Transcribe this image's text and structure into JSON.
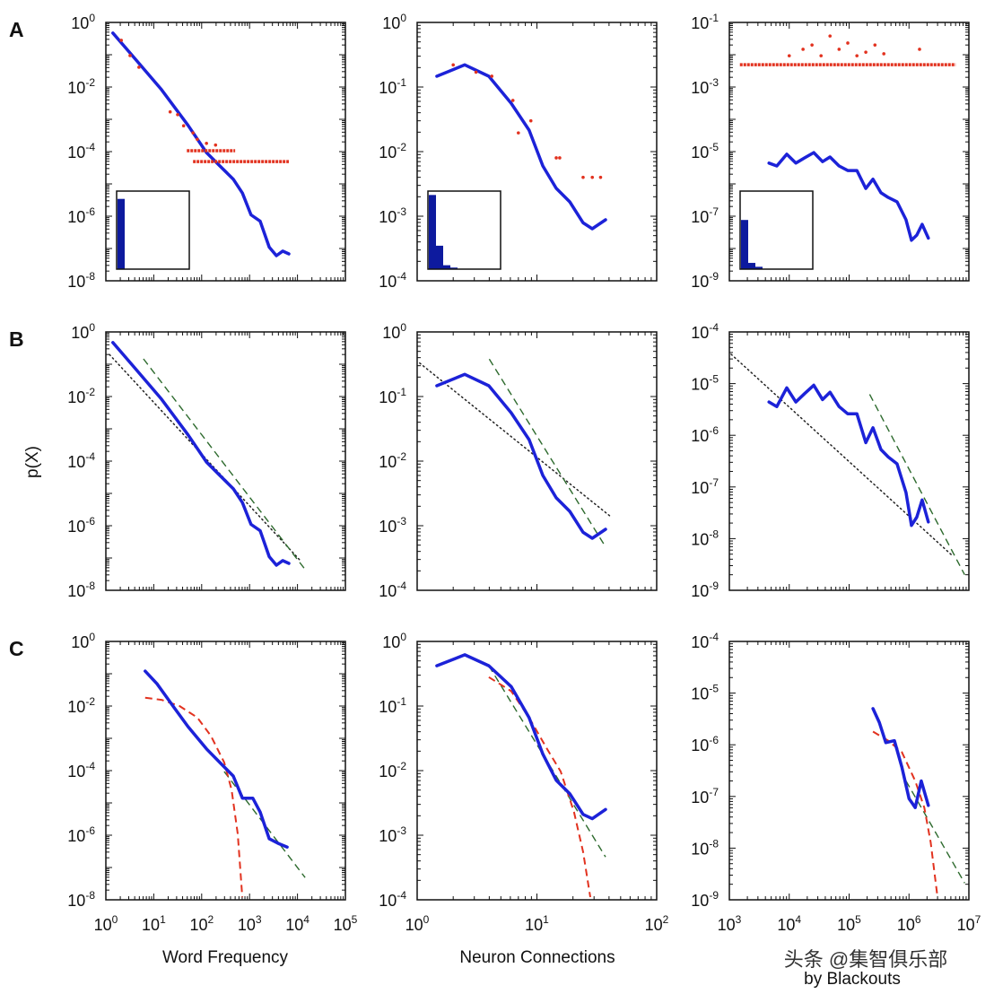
{
  "figure": {
    "row_letters": [
      "A",
      "B",
      "C"
    ],
    "ylabel": "p(X)",
    "xlabels": [
      "Word Frequency",
      "Neuron Connections",
      "by Blackouts"
    ],
    "watermark": "头条 @集智俱乐部"
  },
  "colors": {
    "blue": "#1c22d8",
    "red": "#e2321f",
    "green": "#2d6a2d",
    "black": "#222222",
    "inset_bar": "#0d1a9e"
  },
  "chart_data": [
    {
      "panel": "A-word",
      "type": "line",
      "scale": "log-log",
      "xlim": [
        1,
        100000
      ],
      "ylim": [
        1e-08,
        1
      ],
      "yticks": [
        1,
        0.01,
        0.0001,
        1e-06,
        1e-08
      ],
      "ytick_labels": [
        "10^0",
        "10^-2",
        "10^-4",
        "10^-6",
        "10^-8"
      ],
      "xticks": [],
      "xtick_labels": [],
      "series": [
        {
          "type": "line",
          "style": "solid",
          "color": "blue",
          "x": [
            1.4,
            3.98,
            14.5,
            52,
            126,
            240,
            457,
            708,
            1070,
            1660,
            2570,
            3630,
            4900,
            6600
          ],
          "y": [
            0.47,
            0.078,
            0.0083,
            0.00065,
            9.3e-05,
            3.6e-05,
            1.4e-05,
            5.2e-06,
            1.1e-06,
            7e-07,
            1.1e-07,
            6e-08,
            8.3e-08,
            6.8e-08
          ]
        },
        {
          "type": "scatter",
          "color": "red",
          "x": [
            2.1,
            3.2,
            4.9,
            22,
            31.5,
            42,
            66,
            81,
            126,
            195
          ],
          "y": [
            0.28,
            0.094,
            0.041,
            0.0017,
            0.0014,
            0.00063,
            0.00038,
            0.00024,
            0.00018,
            0.00016
          ]
        },
        {
          "type": "band",
          "color": "red",
          "y": 0.000107,
          "x": [
            49,
            500
          ]
        },
        {
          "type": "band",
          "color": "red",
          "y": 4.9e-05,
          "x": [
            66,
            6600
          ]
        }
      ],
      "inset_bars": [
        0.9
      ]
    },
    {
      "panel": "A-neuron",
      "type": "line",
      "scale": "log-log",
      "xlim": [
        1,
        100
      ],
      "ylim": [
        0.0001,
        1
      ],
      "yticks": [
        1,
        0.1,
        0.01,
        0.001,
        0.0001
      ],
      "ytick_labels": [
        "10^0",
        "10^-1",
        "10^-2",
        "10^-3",
        "10^-4"
      ],
      "xticks": [],
      "xtick_labels": [],
      "series": [
        {
          "type": "line",
          "style": "solid",
          "color": "blue",
          "x": [
            1.46,
            2.5,
            3.97,
            6.1,
            8.6,
            11.2,
            14.5,
            18.8,
            24.3,
            29,
            37.4
          ],
          "y": [
            0.147,
            0.22,
            0.147,
            0.056,
            0.0215,
            0.006,
            0.0027,
            0.00167,
            0.00079,
            0.00064,
            0.00088
          ]
        },
        {
          "type": "scatter",
          "color": "red",
          "x": [
            2.0,
            3.1,
            4.2,
            6.3,
            7.0,
            8.9,
            14.5,
            15.5,
            24.3,
            29,
            34
          ],
          "y": [
            0.22,
            0.17,
            0.147,
            0.062,
            0.0195,
            0.03,
            0.008,
            0.008,
            0.004,
            0.004,
            0.004
          ]
        }
      ],
      "inset_bars": [
        0.95,
        0.3,
        0.05,
        0.02
      ]
    },
    {
      "panel": "A-blackout",
      "type": "line",
      "scale": "log-log",
      "xlim": [
        1000,
        10000000
      ],
      "ylim": [
        1e-09,
        0.1
      ],
      "yticks": [
        0.1,
        0.001,
        1e-05,
        1e-07,
        1e-09
      ],
      "ytick_labels": [
        "10^-1",
        "10^-3",
        "10^-5",
        "10^-7",
        "10^-9"
      ],
      "xticks": [],
      "xtick_labels": [],
      "series": [
        {
          "type": "line",
          "style": "solid",
          "color": "blue",
          "x": [
            4600,
            6200,
            9100,
            12900,
            18000,
            25700,
            36000,
            48000,
            68000,
            95000,
            135000,
            190000,
            250000,
            340000,
            450000,
            630000,
            890000,
            1100000,
            1350000,
            1660000,
            2100000
          ],
          "y": [
            4.4e-06,
            3.6e-06,
            8.3e-06,
            4.4e-06,
            6.4e-06,
            9.3e-06,
            4.9e-06,
            6.8e-06,
            3.6e-06,
            2.6e-06,
            2.6e-06,
            7.2e-07,
            1.4e-06,
            5.3e-07,
            3.8e-07,
            2.8e-07,
            7.8e-08,
            1.8e-08,
            2.6e-08,
            5.6e-08,
            2.1e-08
          ]
        },
        {
          "type": "band",
          "color": "red",
          "y": 0.0049,
          "x": [
            1500,
            6000000
          ]
        },
        {
          "type": "scatter",
          "color": "red",
          "x": [
            10000,
            17000,
            24000,
            34000,
            48000,
            68000,
            95000,
            135000,
            190000,
            270000,
            380000,
            1500000
          ],
          "y": [
            0.0093,
            0.0147,
            0.02,
            0.0093,
            0.038,
            0.0147,
            0.023,
            0.0093,
            0.012,
            0.02,
            0.0107,
            0.0147
          ]
        }
      ],
      "inset_bars": [
        0.63,
        0.08,
        0.03
      ]
    },
    {
      "panel": "B-word",
      "type": "line",
      "scale": "log-log",
      "xlim": [
        1,
        100000
      ],
      "ylim": [
        1e-08,
        1
      ],
      "yticks": [
        1,
        0.01,
        0.0001,
        1e-06,
        1e-08
      ],
      "ytick_labels": [
        "10^0",
        "10^-2",
        "10^-4",
        "10^-6",
        "10^-8"
      ],
      "xticks": [],
      "xtick_labels": [],
      "series": [
        {
          "type": "line",
          "style": "dotted",
          "color": "black",
          "x": [
            1.19,
            11500
          ],
          "y": [
            0.2,
            8.3e-08
          ]
        },
        {
          "type": "line",
          "style": "dashed",
          "color": "green",
          "x": [
            6.1,
            14400
          ],
          "y": [
            0.147,
            4.4e-08
          ]
        },
        {
          "type": "line",
          "style": "solid",
          "color": "blue",
          "x": [
            1.4,
            3.98,
            14.5,
            52,
            126,
            240,
            457,
            708,
            1070,
            1660,
            2570,
            3630,
            4900,
            6600
          ],
          "y": [
            0.47,
            0.078,
            0.0083,
            0.00065,
            9.3e-05,
            3.6e-05,
            1.4e-05,
            5.2e-06,
            1.1e-06,
            7e-07,
            1.1e-07,
            6e-08,
            8.3e-08,
            6.8e-08
          ]
        }
      ]
    },
    {
      "panel": "B-neuron",
      "type": "line",
      "scale": "log-log",
      "xlim": [
        1,
        100
      ],
      "ylim": [
        0.0001,
        1
      ],
      "yticks": [
        1,
        0.1,
        0.01,
        0.001,
        0.0001
      ],
      "ytick_labels": [
        "10^0",
        "10^-1",
        "10^-2",
        "10^-3",
        "10^-4"
      ],
      "xticks": [],
      "xtick_labels": [],
      "series": [
        {
          "type": "line",
          "style": "dotted",
          "color": "black",
          "x": [
            1.05,
            41
          ],
          "y": [
            0.33,
            0.0014
          ]
        },
        {
          "type": "line",
          "style": "dashed",
          "color": "green",
          "x": [
            4.0,
            37.4
          ],
          "y": [
            0.38,
            0.00047
          ]
        },
        {
          "type": "line",
          "style": "solid",
          "color": "blue",
          "x": [
            1.46,
            2.5,
            3.97,
            6.1,
            8.6,
            11.2,
            14.5,
            18.8,
            24.3,
            29,
            37.4
          ],
          "y": [
            0.147,
            0.22,
            0.147,
            0.056,
            0.0215,
            0.006,
            0.0027,
            0.00167,
            0.00079,
            0.00064,
            0.00088
          ]
        }
      ]
    },
    {
      "panel": "B-blackout",
      "type": "line",
      "scale": "log-log",
      "xlim": [
        1000,
        10000000
      ],
      "ylim": [
        1e-09,
        0.0001
      ],
      "yticks": [
        0.0001,
        1e-05,
        1e-06,
        1e-07,
        1e-08,
        1e-09
      ],
      "ytick_labels": [
        "10^-4",
        "10^-5",
        "10^-6",
        "10^-7",
        "10^-8",
        "10^-9"
      ],
      "xticks": [],
      "xtick_labels": [],
      "series": [
        {
          "type": "line",
          "style": "dotted",
          "color": "black",
          "x": [
            1070,
            5400000
          ],
          "y": [
            3.7e-05,
            4.6e-09
          ]
        },
        {
          "type": "line",
          "style": "dashed",
          "color": "green",
          "x": [
            220000,
            8500000
          ],
          "y": [
            6.2e-06,
            2e-09
          ]
        },
        {
          "type": "line",
          "style": "solid",
          "color": "blue",
          "x": [
            4600,
            6200,
            9100,
            12900,
            18000,
            25700,
            36000,
            48000,
            68000,
            95000,
            135000,
            190000,
            250000,
            340000,
            450000,
            630000,
            890000,
            1100000,
            1350000,
            1660000,
            2100000
          ],
          "y": [
            4.4e-06,
            3.6e-06,
            8.3e-06,
            4.4e-06,
            6.4e-06,
            9.3e-06,
            4.9e-06,
            6.8e-06,
            3.6e-06,
            2.6e-06,
            2.6e-06,
            7.2e-07,
            1.4e-06,
            5.3e-07,
            3.8e-07,
            2.8e-07,
            7.8e-08,
            1.8e-08,
            2.6e-08,
            5.6e-08,
            2.1e-08
          ]
        }
      ]
    },
    {
      "panel": "C-word",
      "type": "line",
      "scale": "log-log",
      "xlim": [
        1,
        100000
      ],
      "ylim": [
        1e-08,
        1
      ],
      "yticks": [
        1,
        0.01,
        0.0001,
        1e-06,
        1e-08
      ],
      "ytick_labels": [
        "10^0",
        "10^-2",
        "10^-4",
        "10^-6",
        "10^-8"
      ],
      "xticks": [
        1,
        10,
        100,
        1000,
        10000,
        100000
      ],
      "xtick_labels": [
        "10^0",
        "10^1",
        "10^2",
        "10^3",
        "10^4",
        "10^5"
      ],
      "series": [
        {
          "type": "line",
          "style": "dashed",
          "color": "green",
          "x": [
            295,
            14400
          ],
          "y": [
            9.3e-05,
            4.9e-08
          ]
        },
        {
          "type": "line",
          "style": "dashed",
          "color": "red",
          "x": [
            6.6,
            14.5,
            34.5,
            81,
            155,
            295,
            420,
            565,
            705
          ],
          "y": [
            0.018,
            0.0155,
            0.01,
            0.0044,
            0.0012,
            0.00018,
            2.6e-05,
            1.1e-06,
            1.2e-08
          ]
        },
        {
          "type": "line",
          "style": "solid",
          "color": "blue",
          "x": [
            6.6,
            11.7,
            27.6,
            52,
            126,
            295,
            457,
            708,
            1170,
            1660,
            2570,
            3960,
            6100
          ],
          "y": [
            0.12,
            0.049,
            0.0083,
            0.0023,
            0.00047,
            0.00013,
            6.8e-05,
            1.4e-05,
            1.4e-05,
            5.2e-06,
            7.8e-07,
            5.6e-07,
            4.3e-07
          ]
        }
      ]
    },
    {
      "panel": "C-neuron",
      "type": "line",
      "scale": "log-log",
      "xlim": [
        1,
        100
      ],
      "ylim": [
        0.0001,
        1
      ],
      "yticks": [
        1,
        0.1,
        0.01,
        0.001,
        0.0001
      ],
      "ytick_labels": [
        "10^0",
        "10^-1",
        "10^-2",
        "10^-3",
        "10^-4"
      ],
      "xticks": [
        1,
        10,
        100
      ],
      "xtick_labels": [
        "10^0",
        "10^1",
        "10^2"
      ],
      "series": [
        {
          "type": "line",
          "style": "dashed",
          "color": "green",
          "x": [
            3.97,
            37.4
          ],
          "y": [
            0.42,
            0.00046
          ]
        },
        {
          "type": "line",
          "style": "dashed",
          "color": "red",
          "x": [
            3.97,
            6.1,
            8.6,
            12.2,
            15.8,
            20.4,
            24.3,
            27.9
          ],
          "y": [
            0.28,
            0.17,
            0.066,
            0.0215,
            0.0097,
            0.0023,
            0.00055,
            0.00011
          ]
        },
        {
          "type": "line",
          "style": "solid",
          "color": "blue",
          "x": [
            1.46,
            2.5,
            3.97,
            6.1,
            8.6,
            11.2,
            14.5,
            18.8,
            24.3,
            29,
            37.4
          ],
          "y": [
            0.42,
            0.62,
            0.42,
            0.2,
            0.066,
            0.018,
            0.0071,
            0.0044,
            0.0021,
            0.0018,
            0.0025
          ]
        }
      ]
    },
    {
      "panel": "C-blackout",
      "type": "line",
      "scale": "log-log",
      "xlim": [
        1000,
        10000000
      ],
      "ylim": [
        1e-09,
        0.0001
      ],
      "yticks": [
        0.0001,
        1e-05,
        1e-06,
        1e-07,
        1e-08,
        1e-09
      ],
      "ytick_labels": [
        "10^-4",
        "10^-5",
        "10^-6",
        "10^-7",
        "10^-8",
        "10^-9"
      ],
      "xticks": [
        1000,
        10000,
        100000,
        1000000,
        10000000
      ],
      "xtick_labels": [
        "10^3",
        "10^4",
        "10^5",
        "10^6",
        "10^7"
      ],
      "series": [
        {
          "type": "line",
          "style": "dashed",
          "color": "green",
          "x": [
            890000,
            8500000
          ],
          "y": [
            2e-07,
            2.1e-09
          ]
        },
        {
          "type": "line",
          "style": "dashed",
          "color": "red",
          "x": [
            250000,
            450000,
            760000,
            1270000,
            1800000,
            2300000,
            3000000
          ],
          "y": [
            1.8e-06,
            1.2e-06,
            7.2e-07,
            2e-07,
            6.1e-08,
            1.3e-08,
            1.1e-09
          ]
        },
        {
          "type": "line",
          "style": "solid",
          "color": "blue",
          "x": [
            250000,
            320000,
            410000,
            570000,
            760000,
            1000000,
            1270000,
            1600000,
            2100000
          ],
          "y": [
            5e-06,
            2.7e-06,
            1.1e-06,
            1.2e-06,
            3.7e-07,
            9.1e-08,
            6.1e-08,
            2e-07,
            6.7e-08
          ]
        }
      ]
    }
  ]
}
